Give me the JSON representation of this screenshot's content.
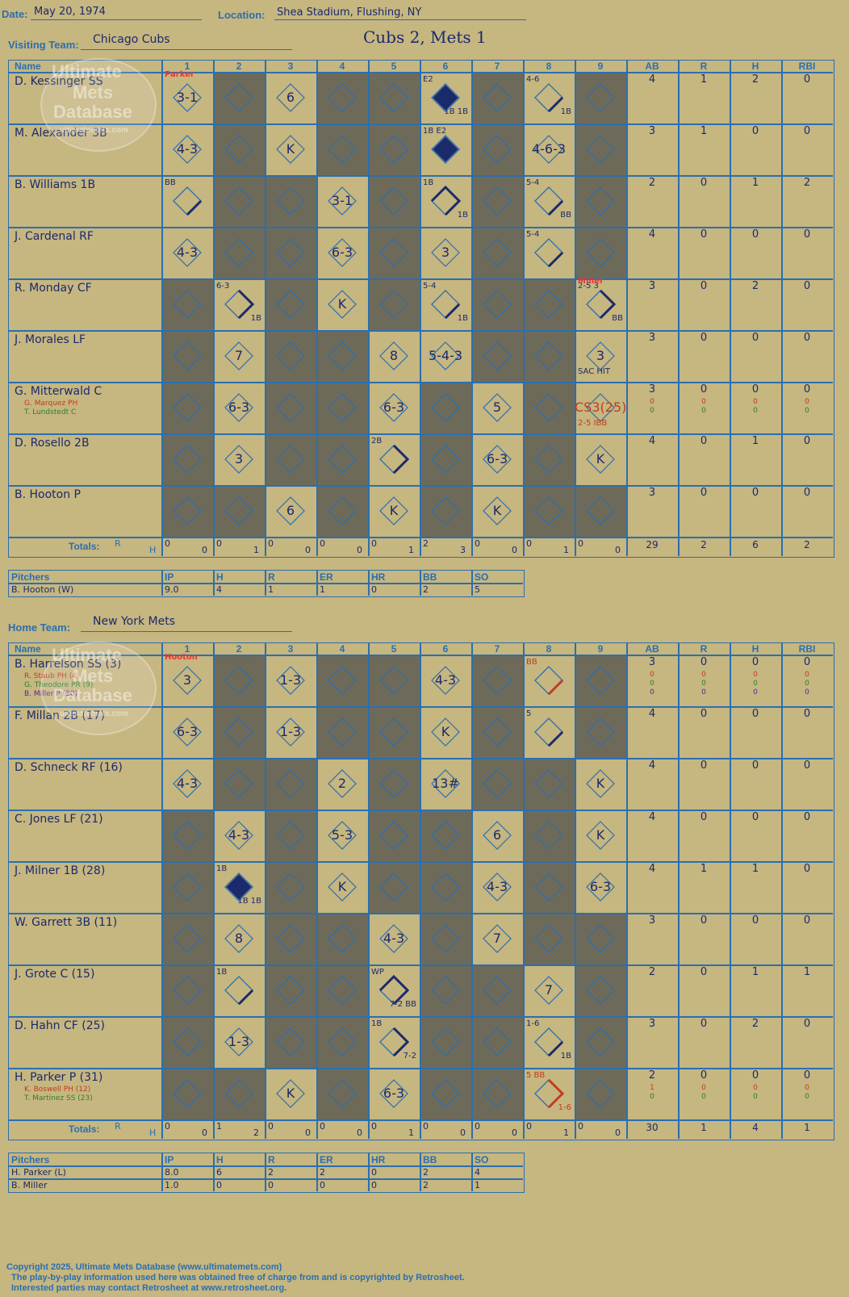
{
  "header": {
    "date_label": "Date:",
    "date": "May 20, 1974",
    "location_label": "Location:",
    "location": "Shea Stadium, Flushing, NY",
    "visiting_label": "Visiting Team:",
    "visiting_team": "Chicago Cubs",
    "result": "Cubs 2, Mets 1",
    "home_label": "Home Team:",
    "home_team": "New York Mets"
  },
  "watermark": {
    "line1": "Ultimate",
    "line2": "Mets",
    "line3": "Database",
    "url": "ultimatemets.com"
  },
  "columns": {
    "name": "Name",
    "innings": [
      "1",
      "2",
      "3",
      "4",
      "5",
      "6",
      "7",
      "8",
      "9"
    ],
    "ab": "AB",
    "r": "R",
    "h": "H",
    "rbi": "RBI",
    "totals": "Totals:",
    "r_short": "R",
    "h_short": "H"
  },
  "visitors": {
    "batters": [
      {
        "name": "D. Kessinger SS",
        "ab": "4",
        "r": "1",
        "h": "2",
        "rbi": "0"
      },
      {
        "name": "M. Alexander 3B",
        "ab": "3",
        "r": "1",
        "h": "0",
        "rbi": "0"
      },
      {
        "name": "B. Williams 1B",
        "ab": "2",
        "r": "0",
        "h": "1",
        "rbi": "2"
      },
      {
        "name": "J. Cardenal RF",
        "ab": "4",
        "r": "0",
        "h": "0",
        "rbi": "0"
      },
      {
        "name": "R. Monday CF",
        "ab": "3",
        "r": "0",
        "h": "2",
        "rbi": "0"
      },
      {
        "name": "J. Morales LF",
        "ab": "3",
        "r": "0",
        "h": "0",
        "rbi": "0"
      },
      {
        "name": "G. Mitterwald C",
        "ab": "3",
        "r": "0",
        "h": "0",
        "rbi": "0",
        "subs": [
          {
            "name": "G. Marquez PH",
            "color": "#c23b22"
          },
          {
            "name": "T. Lundstedt C",
            "color": "#2e7d32"
          }
        ],
        "sub_stats": [
          [
            "0",
            "0",
            "0",
            "0"
          ],
          [
            "0",
            "0",
            "0",
            "0"
          ]
        ]
      },
      {
        "name": "D. Rosello 2B",
        "ab": "4",
        "r": "0",
        "h": "1",
        "rbi": "0"
      },
      {
        "name": "B. Hooton P",
        "ab": "3",
        "r": "0",
        "h": "0",
        "rbi": "0"
      }
    ],
    "plays": [
      {
        "row": 0,
        "inn": 0,
        "text": "3-1"
      },
      {
        "row": 0,
        "inn": 2,
        "text": "6"
      },
      {
        "row": 0,
        "inn": 5,
        "text": "E2",
        "small": "1B  1B",
        "diamond": "scored"
      },
      {
        "row": 0,
        "inn": 7,
        "text": "4-6",
        "small": "1B",
        "diamond": "single"
      },
      {
        "row": 1,
        "inn": 0,
        "text": "4-3"
      },
      {
        "row": 1,
        "inn": 2,
        "text": "K"
      },
      {
        "row": 1,
        "inn": 5,
        "text": "1B  E2",
        "diamond": "scored"
      },
      {
        "row": 1,
        "inn": 7,
        "text": "4-6-3"
      },
      {
        "row": 2,
        "inn": 0,
        "text": "BB",
        "diamond": "single"
      },
      {
        "row": 2,
        "inn": 3,
        "text": "3-1"
      },
      {
        "row": 2,
        "inn": 5,
        "text": "1B",
        "small": "1B",
        "diamond": "third"
      },
      {
        "row": 2,
        "inn": 7,
        "text": "5-4",
        "small": "BB",
        "diamond": "single"
      },
      {
        "row": 3,
        "inn": 0,
        "text": "4-3"
      },
      {
        "row": 3,
        "inn": 3,
        "text": "6-3"
      },
      {
        "row": 3,
        "inn": 5,
        "text": "3"
      },
      {
        "row": 3,
        "inn": 7,
        "text": "5-4",
        "diamond": "single"
      },
      {
        "row": 4,
        "inn": 1,
        "text": "6-3",
        "small": "1B",
        "diamond": "second"
      },
      {
        "row": 4,
        "inn": 3,
        "text": "K"
      },
      {
        "row": 4,
        "inn": 5,
        "text": "5-4",
        "small": "1B",
        "diamond": "single"
      },
      {
        "row": 4,
        "inn": 8,
        "text": "2-5  3",
        "small": "BB",
        "diamond": "second"
      },
      {
        "row": 5,
        "inn": 1,
        "text": "7"
      },
      {
        "row": 5,
        "inn": 4,
        "text": "8"
      },
      {
        "row": 5,
        "inn": 5,
        "text": "5-4-3"
      },
      {
        "row": 5,
        "inn": 8,
        "text": "3",
        "small": "SAC HIT"
      },
      {
        "row": 6,
        "inn": 1,
        "text": "6-3"
      },
      {
        "row": 6,
        "inn": 4,
        "text": "6-3"
      },
      {
        "row": 6,
        "inn": 6,
        "text": "5"
      },
      {
        "row": 6,
        "inn": 8,
        "text": "CS3(25)",
        "small": "2-5  IBB",
        "red": true
      },
      {
        "row": 7,
        "inn": 1,
        "text": "3"
      },
      {
        "row": 7,
        "inn": 4,
        "text": "2B",
        "diamond": "second"
      },
      {
        "row": 7,
        "inn": 6,
        "text": "6-3"
      },
      {
        "row": 7,
        "inn": 8,
        "text": "K"
      },
      {
        "row": 8,
        "inn": 2,
        "text": "6"
      },
      {
        "row": 8,
        "inn": 4,
        "text": "K"
      },
      {
        "row": 8,
        "inn": 6,
        "text": "K"
      }
    ],
    "pitcher_change_labels": [
      {
        "row": 0,
        "inn": 0,
        "text": "Parker"
      },
      {
        "row": 4,
        "inn": 8,
        "text": "Miller"
      }
    ],
    "totals": {
      "innings": [
        [
          "0",
          "0"
        ],
        [
          "0",
          "1"
        ],
        [
          "0",
          "0"
        ],
        [
          "0",
          "0"
        ],
        [
          "0",
          "1"
        ],
        [
          "2",
          "3"
        ],
        [
          "0",
          "0"
        ],
        [
          "0",
          "1"
        ],
        [
          "0",
          "0"
        ]
      ],
      "ab": "29",
      "r": "2",
      "h": "6",
      "rbi": "2"
    },
    "pitchers": {
      "headers": [
        "Pitchers",
        "IP",
        "H",
        "R",
        "ER",
        "HR",
        "BB",
        "SO"
      ],
      "rows": [
        [
          "B. Hooton (W)",
          "9.0",
          "4",
          "1",
          "1",
          "0",
          "2",
          "5"
        ]
      ]
    }
  },
  "home": {
    "batters": [
      {
        "name": "B. Harrelson SS (3)",
        "ab": "3",
        "r": "0",
        "h": "0",
        "rbi": "0",
        "subs": [
          {
            "name": "R. Staub PH (4)",
            "color": "#c23b22"
          },
          {
            "name": "G. Theodore PR (9)",
            "color": "#2e7d32"
          },
          {
            "name": "B. Miller P (30)",
            "color": "#6a1b9a"
          }
        ],
        "sub_stats": [
          [
            "0",
            "0",
            "0",
            "0"
          ],
          [
            "0",
            "0",
            "0",
            "0"
          ],
          [
            "0",
            "0",
            "0",
            "0"
          ]
        ]
      },
      {
        "name": "F. Millan 2B (17)",
        "ab": "4",
        "r": "0",
        "h": "0",
        "rbi": "0"
      },
      {
        "name": "D. Schneck RF (16)",
        "ab": "4",
        "r": "0",
        "h": "0",
        "rbi": "0"
      },
      {
        "name": "C. Jones LF (21)",
        "ab": "4",
        "r": "0",
        "h": "0",
        "rbi": "0"
      },
      {
        "name": "J. Milner 1B (28)",
        "ab": "4",
        "r": "1",
        "h": "1",
        "rbi": "0"
      },
      {
        "name": "W. Garrett 3B (11)",
        "ab": "3",
        "r": "0",
        "h": "0",
        "rbi": "0"
      },
      {
        "name": "J. Grote C (15)",
        "ab": "2",
        "r": "0",
        "h": "1",
        "rbi": "1"
      },
      {
        "name": "D. Hahn CF (25)",
        "ab": "3",
        "r": "0",
        "h": "2",
        "rbi": "0"
      },
      {
        "name": "H. Parker P (31)",
        "ab": "2",
        "r": "0",
        "h": "0",
        "rbi": "0",
        "subs": [
          {
            "name": "K. Boswell PH (12)",
            "color": "#c23b22"
          },
          {
            "name": "T. Martinez SS (23)",
            "color": "#2e7d32"
          }
        ],
        "sub_stats": [
          [
            "1",
            "0",
            "0",
            "0"
          ],
          [
            "0",
            "0",
            "0",
            "0"
          ]
        ]
      }
    ],
    "plays": [
      {
        "row": 0,
        "inn": 0,
        "text": "3"
      },
      {
        "row": 0,
        "inn": 2,
        "text": "1-3"
      },
      {
        "row": 0,
        "inn": 5,
        "text": "4-3"
      },
      {
        "row": 0,
        "inn": 7,
        "text": "BB",
        "diamond": "single",
        "red": true
      },
      {
        "row": 1,
        "inn": 0,
        "text": "6-3"
      },
      {
        "row": 1,
        "inn": 2,
        "text": "1-3"
      },
      {
        "row": 1,
        "inn": 5,
        "text": "K"
      },
      {
        "row": 1,
        "inn": 7,
        "text": "5",
        "diamond": "single"
      },
      {
        "row": 2,
        "inn": 0,
        "text": "4-3"
      },
      {
        "row": 2,
        "inn": 3,
        "text": "2"
      },
      {
        "row": 2,
        "inn": 5,
        "text": "13#"
      },
      {
        "row": 2,
        "inn": 8,
        "text": "K"
      },
      {
        "row": 3,
        "inn": 1,
        "text": "4-3"
      },
      {
        "row": 3,
        "inn": 3,
        "text": "5-3"
      },
      {
        "row": 3,
        "inn": 6,
        "text": "6"
      },
      {
        "row": 3,
        "inn": 8,
        "text": "K"
      },
      {
        "row": 4,
        "inn": 1,
        "text": "1B",
        "small": "1B  1B",
        "diamond": "scored"
      },
      {
        "row": 4,
        "inn": 3,
        "text": "K"
      },
      {
        "row": 4,
        "inn": 6,
        "text": "4-3"
      },
      {
        "row": 4,
        "inn": 8,
        "text": "6-3"
      },
      {
        "row": 5,
        "inn": 1,
        "text": "8"
      },
      {
        "row": 5,
        "inn": 4,
        "text": "4-3"
      },
      {
        "row": 5,
        "inn": 6,
        "text": "7"
      },
      {
        "row": 6,
        "inn": 1,
        "text": "1B",
        "diamond": "single"
      },
      {
        "row": 6,
        "inn": 4,
        "text": "WP",
        "small": "7-2  BB",
        "diamond": "third"
      },
      {
        "row": 6,
        "inn": 7,
        "text": "7"
      },
      {
        "row": 7,
        "inn": 1,
        "text": "1-3"
      },
      {
        "row": 7,
        "inn": 4,
        "text": "1B",
        "small": "7-2",
        "diamond": "second"
      },
      {
        "row": 7,
        "inn": 7,
        "text": "1-6",
        "small": "1B",
        "diamond": "single"
      },
      {
        "row": 8,
        "inn": 2,
        "text": "K"
      },
      {
        "row": 8,
        "inn": 4,
        "text": "6-3"
      },
      {
        "row": 8,
        "inn": 7,
        "text": "5  BB",
        "small": "1-6",
        "diamond": "second",
        "red": true
      }
    ],
    "pitcher_change_labels": [
      {
        "row": 0,
        "inn": 0,
        "text": "Hooton"
      }
    ],
    "totals": {
      "innings": [
        [
          "0",
          "0"
        ],
        [
          "1",
          "2"
        ],
        [
          "0",
          "0"
        ],
        [
          "0",
          "0"
        ],
        [
          "0",
          "1"
        ],
        [
          "0",
          "0"
        ],
        [
          "0",
          "0"
        ],
        [
          "0",
          "1"
        ],
        [
          "0",
          "0"
        ]
      ],
      "ab": "30",
      "r": "1",
      "h": "4",
      "rbi": "1"
    },
    "pitchers": {
      "headers": [
        "Pitchers",
        "IP",
        "H",
        "R",
        "ER",
        "HR",
        "BB",
        "SO"
      ],
      "rows": [
        [
          "H. Parker (L)",
          "8.0",
          "6",
          "2",
          "2",
          "0",
          "2",
          "4"
        ],
        [
          "B. Miller",
          "1.0",
          "0",
          "0",
          "0",
          "0",
          "2",
          "1"
        ]
      ]
    }
  },
  "footer": {
    "line1": "Copyright 2025, Ultimate Mets Database (www.ultimatemets.com)",
    "line2": "The play-by-play information used here was obtained free of charge from and is copyrighted by Retrosheet.",
    "line3": "Interested parties may contact Retrosheet at www.retrosheet.org."
  },
  "colors": {
    "background": "#c6b680",
    "grid": "#2a6fb0",
    "ink": "#1b2a6b",
    "shade": "#6e6a5a",
    "red": "#c23b22"
  }
}
